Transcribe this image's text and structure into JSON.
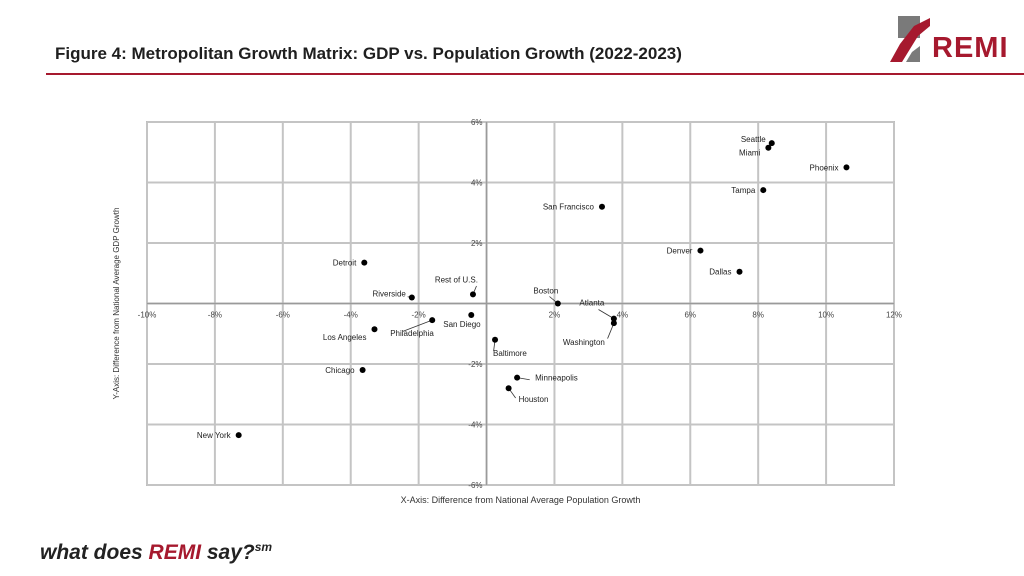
{
  "header": {
    "title": "Figure 4: Metropolitan Growth Matrix: GDP vs. Population Growth (2022-2023)",
    "logo_text": "REMI",
    "accent_color": "#a6192e",
    "logo_gray": "#7a7a7a"
  },
  "footer": {
    "tagline_pre": "what does ",
    "tagline_brand": "REMI",
    "tagline_post": " say?",
    "tagline_sup": "sm"
  },
  "chart_data": {
    "type": "scatter",
    "xlabel": "X-Axis: Difference from National Average Population Growth",
    "ylabel": "Y-Axis: Difference from National Average GDP Growth",
    "xlim": [
      -10,
      12
    ],
    "ylim": [
      -6,
      6
    ],
    "grid": true,
    "x_ticks": [
      -10,
      -8,
      -6,
      -4,
      -2,
      2,
      4,
      6,
      8,
      10,
      12
    ],
    "x_tick_labels": [
      "-10%",
      "-8%",
      "-6%",
      "-4%",
      "-2%",
      "2%",
      "4%",
      "6%",
      "8%",
      "10%",
      "12%"
    ],
    "y_ticks": [
      6,
      4,
      2,
      -2,
      -4,
      -6
    ],
    "y_tick_labels": [
      "6%",
      "4%",
      "2%",
      "-2%",
      "-4%",
      "-6%"
    ],
    "points": [
      {
        "label": "Seattle",
        "x": 8.4,
        "y": 5.3
      },
      {
        "label": "Miami",
        "x": 8.3,
        "y": 5.15
      },
      {
        "label": "Phoenix",
        "x": 10.6,
        "y": 4.5
      },
      {
        "label": "Tampa",
        "x": 8.15,
        "y": 3.75
      },
      {
        "label": "San Francisco",
        "x": 3.4,
        "y": 3.2
      },
      {
        "label": "Denver",
        "x": 6.3,
        "y": 1.75
      },
      {
        "label": "Dallas",
        "x": 7.45,
        "y": 1.05
      },
      {
        "label": "Detroit",
        "x": -3.6,
        "y": 1.35
      },
      {
        "label": "Riverside",
        "x": -2.2,
        "y": 0.2
      },
      {
        "label": "Rest of U.S.",
        "x": -0.4,
        "y": 0.3
      },
      {
        "label": "Boston",
        "x": 2.1,
        "y": 0.0
      },
      {
        "label": "Atlanta",
        "x": 3.75,
        "y": -0.5
      },
      {
        "label": "Washington",
        "x": 3.75,
        "y": -0.65
      },
      {
        "label": "San Diego",
        "x": -0.45,
        "y": -0.38
      },
      {
        "label": "Philadelphia",
        "x": -1.6,
        "y": -0.55
      },
      {
        "label": "Los Angeles",
        "x": -3.3,
        "y": -0.85
      },
      {
        "label": "Baltimore",
        "x": 0.25,
        "y": -1.2
      },
      {
        "label": "Chicago",
        "x": -3.65,
        "y": -2.2
      },
      {
        "label": "Minneapolis",
        "x": 0.9,
        "y": -2.45
      },
      {
        "label": "Houston",
        "x": 0.65,
        "y": -2.8
      },
      {
        "label": "New York",
        "x": -7.3,
        "y": -4.35
      }
    ]
  }
}
